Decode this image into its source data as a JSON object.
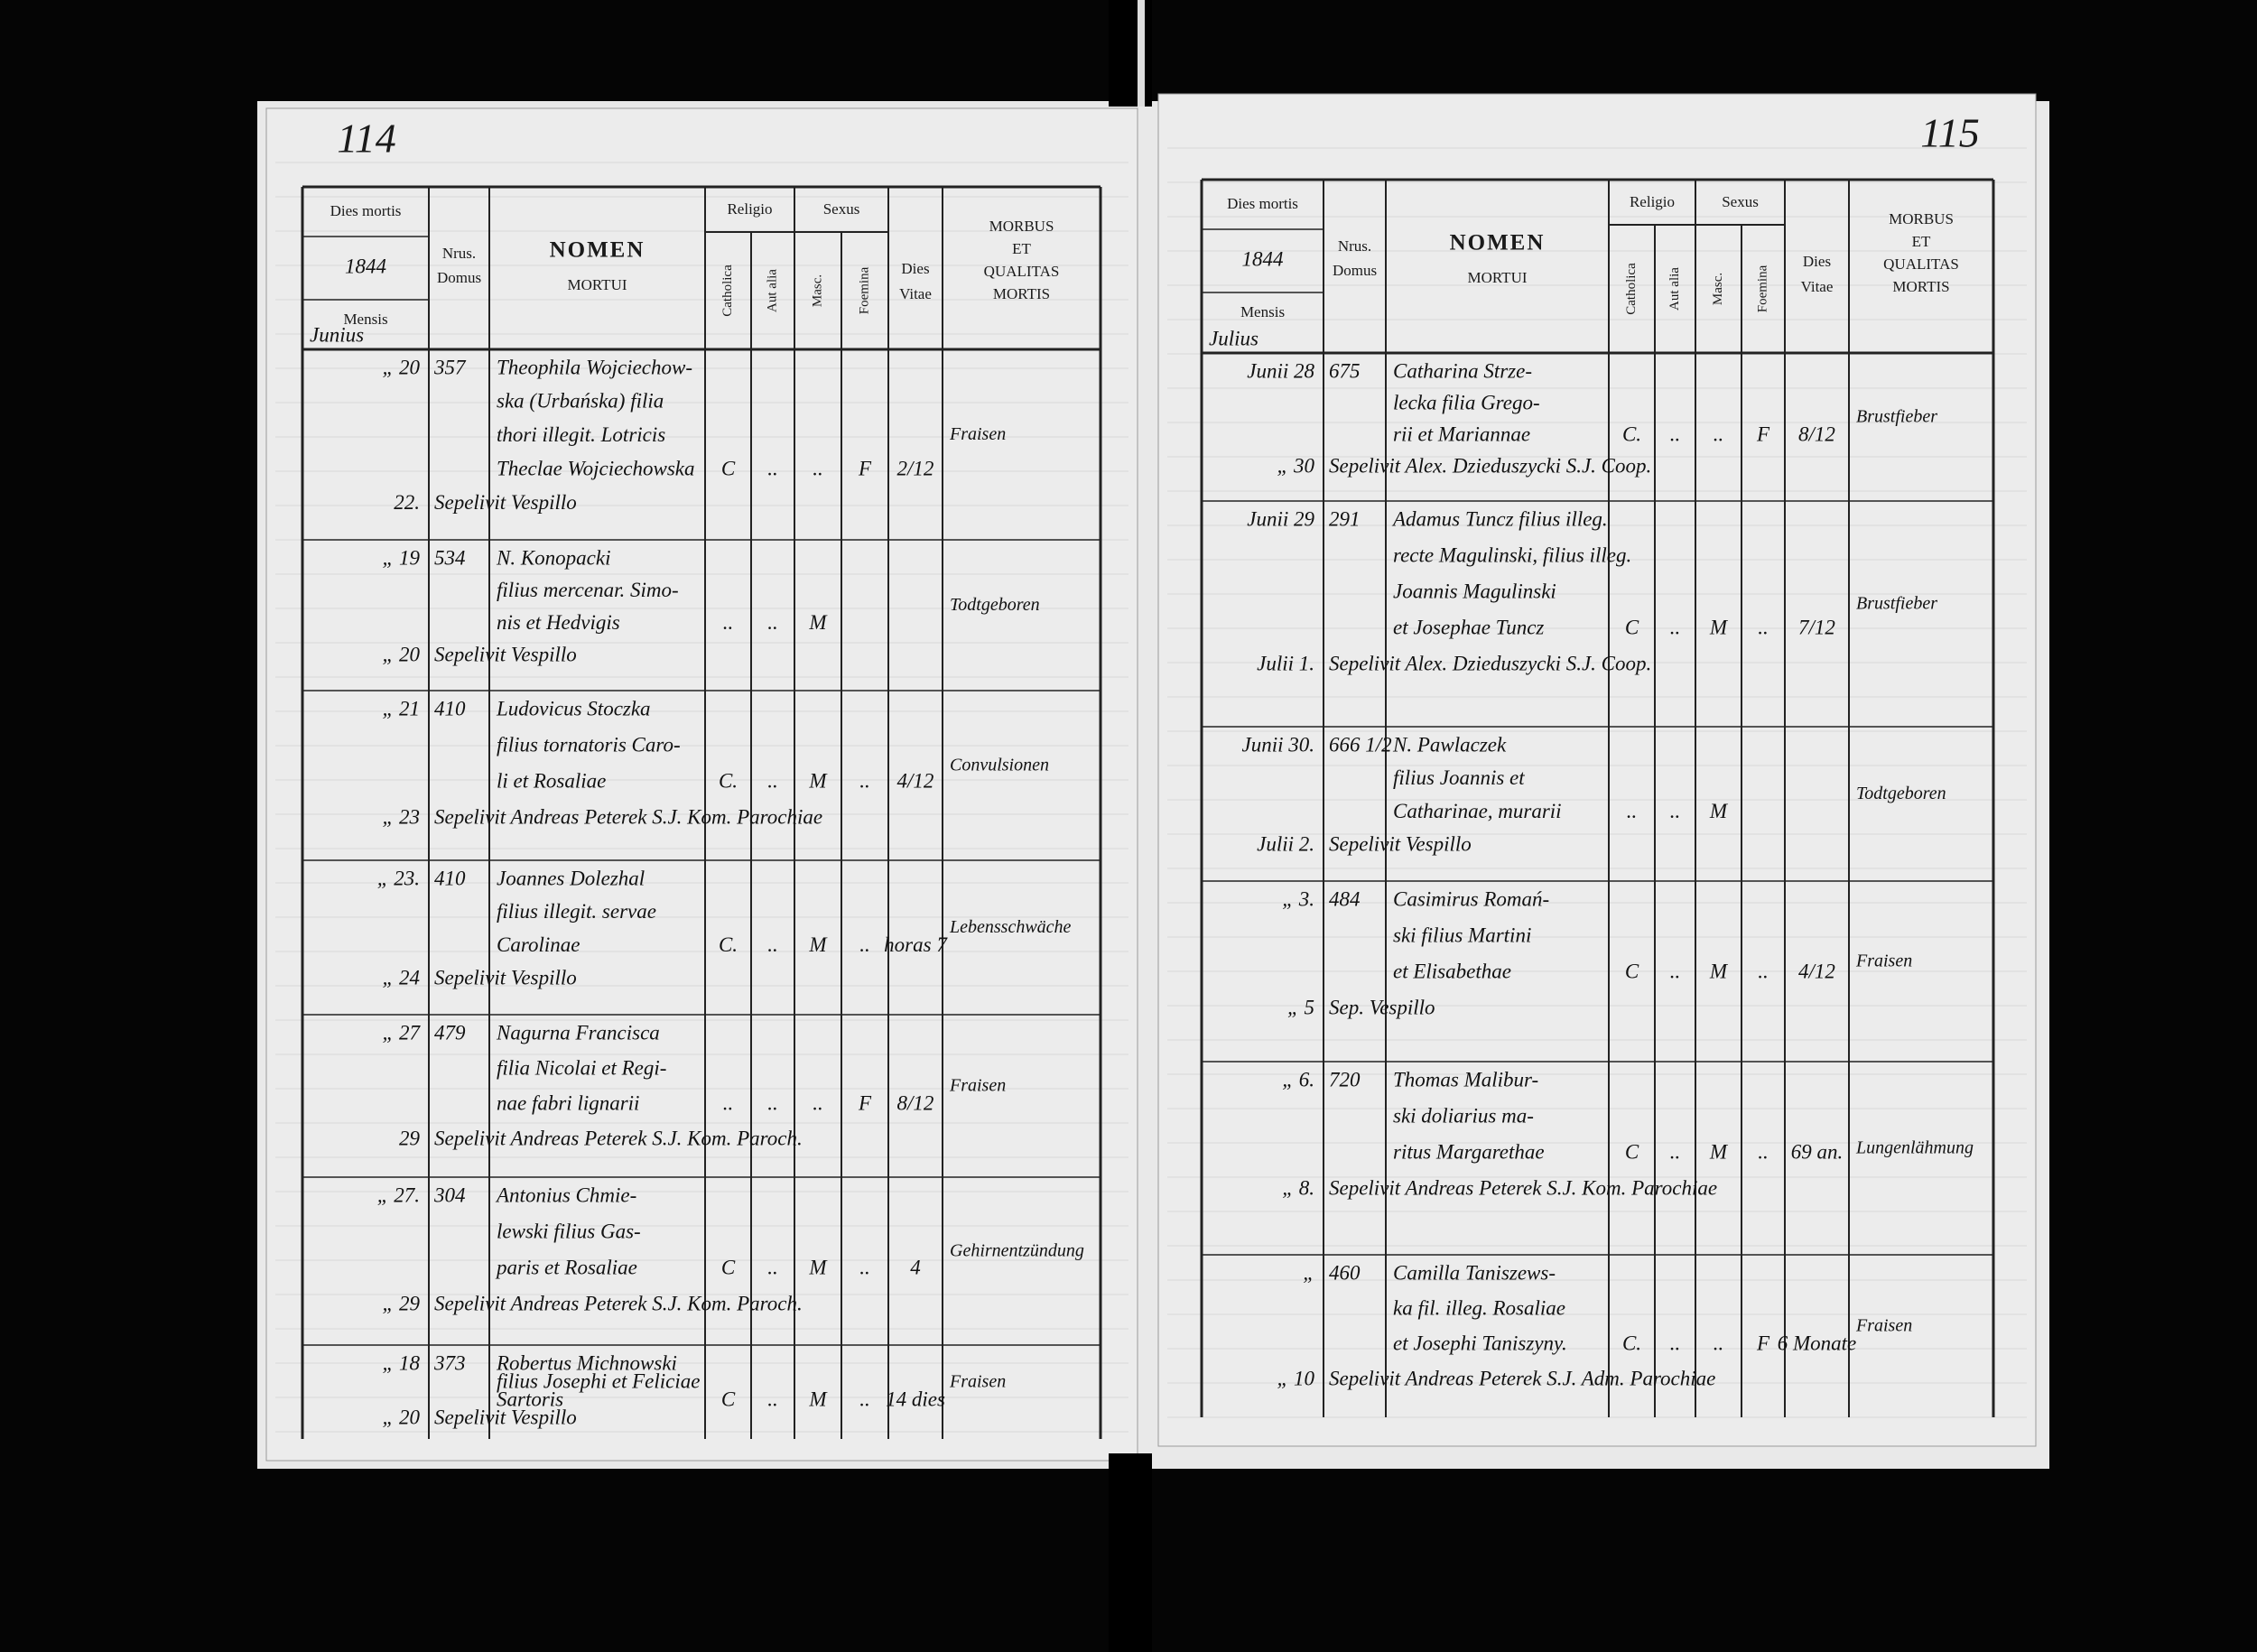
{
  "pages": [
    {
      "page_number": "114",
      "header": {
        "dies_mortis": "Dies mortis",
        "year": "1844",
        "mensis": "Mensis",
        "month": "Junius",
        "nrus": "Nrus.",
        "domus": "Domus",
        "nomen": "NOMEN",
        "mortui": "MORTUI",
        "religio": "Religio",
        "catholica": "Catholica",
        "aut_alia": "Aut alia",
        "sexus": "Sexus",
        "masc": "Masc.",
        "foemina": "Foemina",
        "dies": "Dies",
        "vitae": "Vitae",
        "morbus": "MORBUS",
        "et": "ET",
        "qualitas": "QUALITAS",
        "mortis": "MORTIS"
      },
      "rows": [
        {
          "day": "„ 20",
          "burial_day": "22.",
          "domus": "357",
          "name_lines": [
            "Theophila Wojciechow-",
            "ska (Urbańska) filia",
            "thori illegit. Lotricis",
            "Theclae Wojciechowska"
          ],
          "burial_note": "Sepelivit Vespillo",
          "catholica": "C",
          "aut_alia": "..",
          "masc": "..",
          "foemina": "F",
          "vitae": "2/12",
          "morbus": "Fraisen"
        },
        {
          "day": "„ 19",
          "burial_day": "„ 20",
          "domus": "534",
          "name_lines": [
            "N. Konopacki",
            "filius mercenar. Simo-",
            "nis et Hedvigis"
          ],
          "burial_note": "Sepelivit Vespillo",
          "catholica": "..",
          "aut_alia": "..",
          "masc": "M",
          "foemina": "",
          "vitae": "",
          "morbus": "Todtgeboren"
        },
        {
          "day": "„ 21",
          "burial_day": "„ 23",
          "domus": "410",
          "name_lines": [
            "Ludovicus Stoczka",
            "filius tornatoris Caro-",
            "li et Rosaliae"
          ],
          "burial_note": "Sepelivit Andreas Peterek S.J. Kom. Parochiae",
          "catholica": "C.",
          "aut_alia": "..",
          "masc": "M",
          "foemina": "..",
          "vitae": "4/12",
          "morbus": "Convulsionen"
        },
        {
          "day": "„ 23.",
          "burial_day": "„ 24",
          "domus": "410",
          "name_lines": [
            "Joannes Dolezhal",
            "filius illegit. servae",
            "Carolinae"
          ],
          "burial_note": "Sepelivit Vespillo",
          "catholica": "C.",
          "aut_alia": "..",
          "masc": "M",
          "foemina": "..",
          "vitae": "horas 7",
          "morbus": "Lebensschwäche"
        },
        {
          "day": "„ 27",
          "burial_day": "29",
          "domus": "479",
          "name_lines": [
            "Nagurna Francisca",
            "filia Nicolai et Regi-",
            "nae fabri lignarii"
          ],
          "burial_note": "Sepelivit Andreas Peterek S.J. Kom. Paroch.",
          "catholica": "..",
          "aut_alia": "..",
          "masc": "..",
          "foemina": "F",
          "vitae": "8/12",
          "morbus": "Fraisen"
        },
        {
          "day": "„ 27.",
          "burial_day": "„ 29",
          "domus": "304",
          "name_lines": [
            "Antonius Chmie-",
            "lewski filius Gas-",
            "paris et Rosaliae"
          ],
          "burial_note": "Sepelivit Andreas Peterek S.J. Kom. Paroch.",
          "catholica": "C",
          "aut_alia": "..",
          "masc": "M",
          "foemina": "..",
          "vitae": "4",
          "morbus": "Gehirnentzündung"
        },
        {
          "day": "„ 18",
          "burial_day": "„ 20",
          "domus": "373",
          "name_lines": [
            "Robertus Michnowski",
            "filius Josephi et Feliciae",
            "Sartoris"
          ],
          "burial_note": "Sepelivit Vespillo",
          "catholica": "C",
          "aut_alia": "..",
          "masc": "M",
          "foemina": "..",
          "vitae": "14 dies",
          "morbus": "Fraisen"
        }
      ]
    },
    {
      "page_number": "115",
      "header": {
        "dies_mortis": "Dies mortis",
        "year": "1844",
        "mensis": "Mensis",
        "month": "Julius",
        "nrus": "Nrus.",
        "domus": "Domus",
        "nomen": "NOMEN",
        "mortui": "MORTUI",
        "religio": "Religio",
        "catholica": "Catholica",
        "aut_alia": "Aut alia",
        "sexus": "Sexus",
        "masc": "Masc.",
        "foemina": "Foemina",
        "dies": "Dies",
        "vitae": "Vitae",
        "morbus": "MORBUS",
        "et": "ET",
        "qualitas": "QUALITAS",
        "mortis": "MORTIS"
      },
      "rows": [
        {
          "day": "Junii 28",
          "burial_day": "„ 30",
          "domus": "675",
          "name_lines": [
            "Catharina Strze-",
            "lecka filia Grego-",
            "rii et Mariannae"
          ],
          "burial_note": "Sepelivit Alex. Dzieduszycki S.J. Coop.",
          "catholica": "C.",
          "aut_alia": "..",
          "masc": "..",
          "foemina": "F",
          "vitae": "8/12",
          "morbus": "Brustfieber"
        },
        {
          "day": "Junii 29",
          "burial_day": "Julii 1.",
          "domus": "291",
          "name_lines": [
            "Adamus Tuncz filius illeg.",
            "recte Magulinski, filius illeg.",
            "Joannis Magulinski",
            "et Josephae Tuncz"
          ],
          "burial_note": "Sepelivit Alex. Dzieduszycki S.J. Coop.",
          "catholica": "C",
          "aut_alia": "..",
          "masc": "M",
          "foemina": "..",
          "vitae": "7/12",
          "morbus": "Brustfieber"
        },
        {
          "day": "Junii 30.",
          "burial_day": "Julii 2.",
          "domus": "666 1/2",
          "name_lines": [
            "N. Pawlaczek",
            "filius Joannis et",
            "Catharinae, murarii"
          ],
          "burial_note": "Sepelivit Vespillo",
          "catholica": "..",
          "aut_alia": "..",
          "masc": "M",
          "foemina": "",
          "vitae": "",
          "morbus": "Todtgeboren"
        },
        {
          "day": "„ 3.",
          "burial_day": "„ 5",
          "domus": "484",
          "name_lines": [
            "Casimirus Romań-",
            "ski filius Martini",
            "et Elisabethae"
          ],
          "burial_note": "Sep. Vespillo",
          "catholica": "C",
          "aut_alia": "..",
          "masc": "M",
          "foemina": "..",
          "vitae": "4/12",
          "morbus": "Fraisen"
        },
        {
          "day": "„ 6.",
          "burial_day": "„ 8.",
          "domus": "720",
          "name_lines": [
            "Thomas Malibur-",
            "ski doliarius ma-",
            "ritus Margarethae"
          ],
          "burial_note": "Sepelivit Andreas Peterek S.J. Kom. Parochiae",
          "catholica": "C",
          "aut_alia": "..",
          "masc": "M",
          "foemina": "..",
          "vitae": "69 an.",
          "morbus": "Lungenlähmung"
        },
        {
          "day": "„",
          "burial_day": "„ 10",
          "domus": "460",
          "name_lines": [
            "Camilla Taniszews-",
            "ka fil. illeg. Rosaliae",
            "et Josephi Taniszyny."
          ],
          "burial_note": "Sepelivit Andreas Peterek S.J. Adm. Parochiae",
          "catholica": "C.",
          "aut_alia": "..",
          "masc": "..",
          "foemina": "F",
          "vitae": "6 Monate",
          "morbus": "Fraisen"
        }
      ]
    }
  ]
}
